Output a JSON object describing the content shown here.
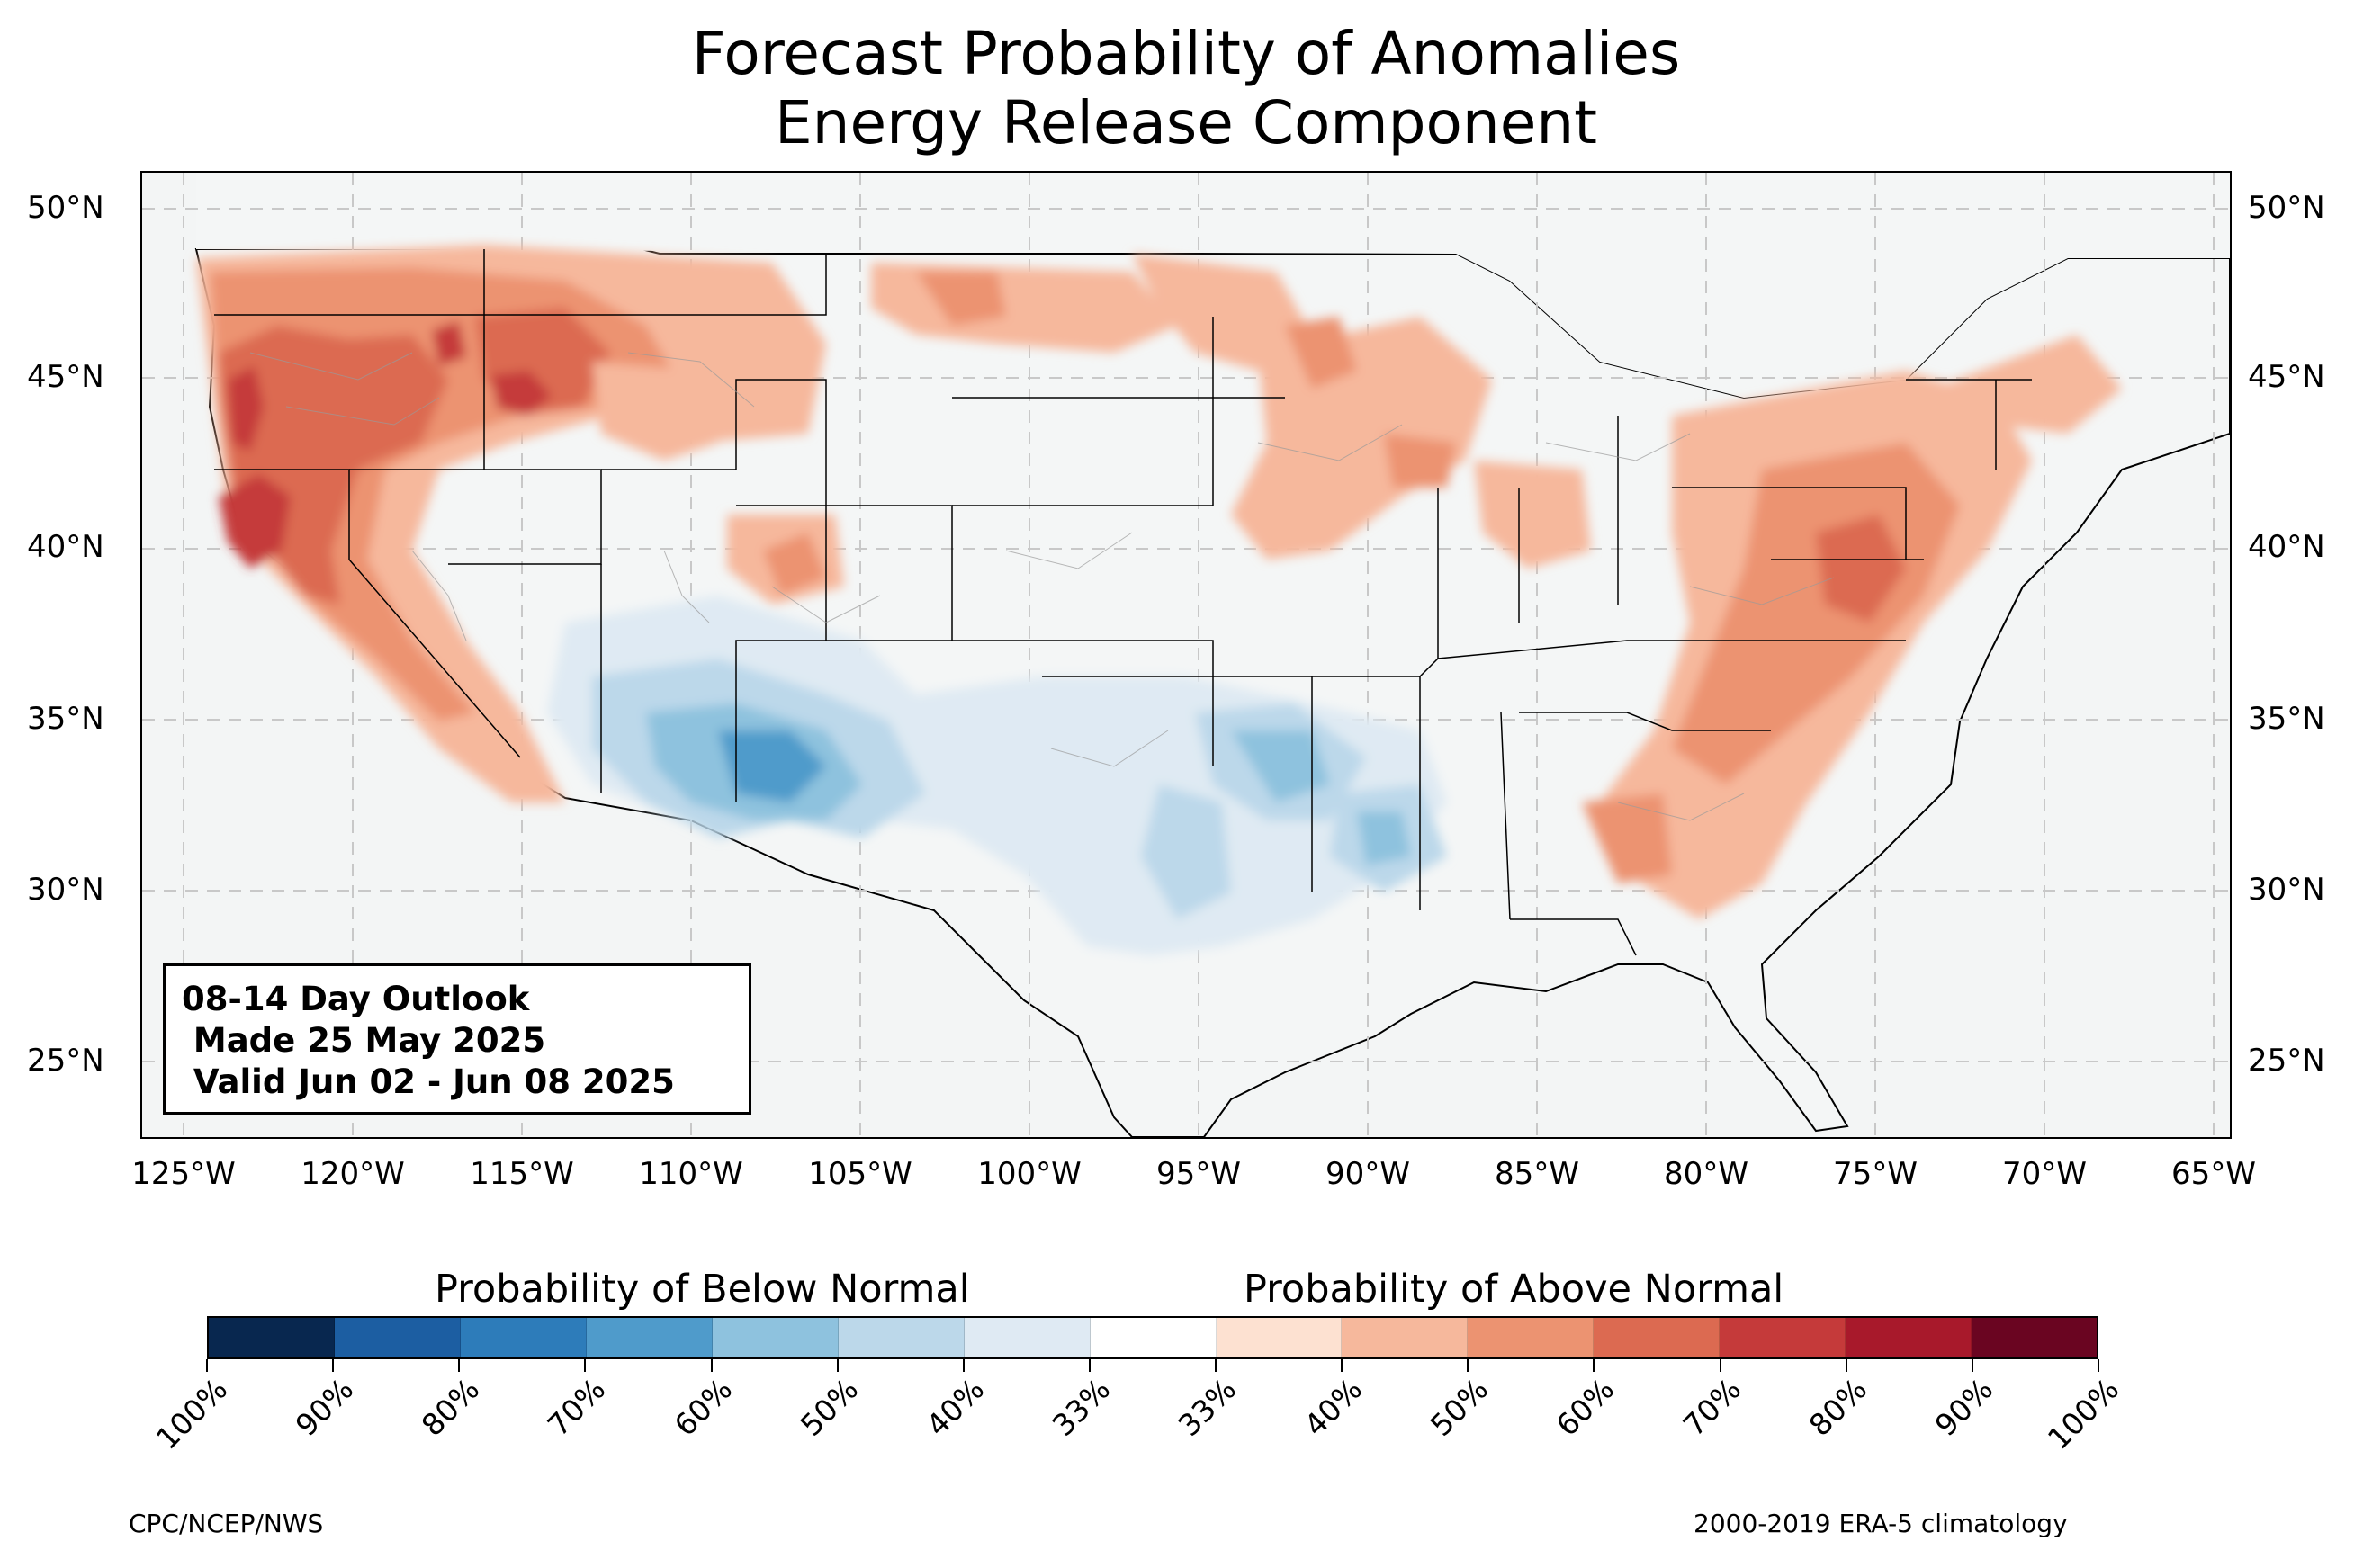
{
  "title": {
    "line1": "Forecast Probability of Anomalies",
    "line2": "Energy Release Component"
  },
  "map": {
    "lat_labels": [
      "50°N",
      "45°N",
      "40°N",
      "35°N",
      "30°N",
      "25°N"
    ],
    "lon_labels": [
      "125°W",
      "120°W",
      "115°W",
      "110°W",
      "105°W",
      "100°W",
      "95°W",
      "90°W",
      "85°W",
      "80°W",
      "75°W",
      "70°W",
      "65°W"
    ],
    "background_color": "#f4f6f6",
    "land_color": "#f4f5f5"
  },
  "outlook_box": {
    "line1": "08-14 Day Outlook",
    "line2": " Made 25 May 2025",
    "line3": " Valid Jun 02 - Jun 08 2025"
  },
  "colorbar": {
    "below_label": "Probability of Below Normal",
    "above_label": "Probability of Above Normal",
    "tick_labels": [
      "100%",
      "90%",
      "80%",
      "70%",
      "60%",
      "50%",
      "40%",
      "33%",
      "33%",
      "40%",
      "50%",
      "60%",
      "70%",
      "80%",
      "90%",
      "100%"
    ],
    "colors": [
      "#08274f",
      "#1c5ea2",
      "#2d7cba",
      "#4f9bcb",
      "#8ec2de",
      "#bcd8ea",
      "#dfeaf3",
      "#ffffff",
      "#fde1d1",
      "#f6b89c",
      "#ec9371",
      "#dc6a51",
      "#c53a3a",
      "#a8192b",
      "#6a0521"
    ]
  },
  "footer": {
    "left": "CPC/NCEP/NWS",
    "right": "2000-2019 ERA-5 climatology"
  }
}
